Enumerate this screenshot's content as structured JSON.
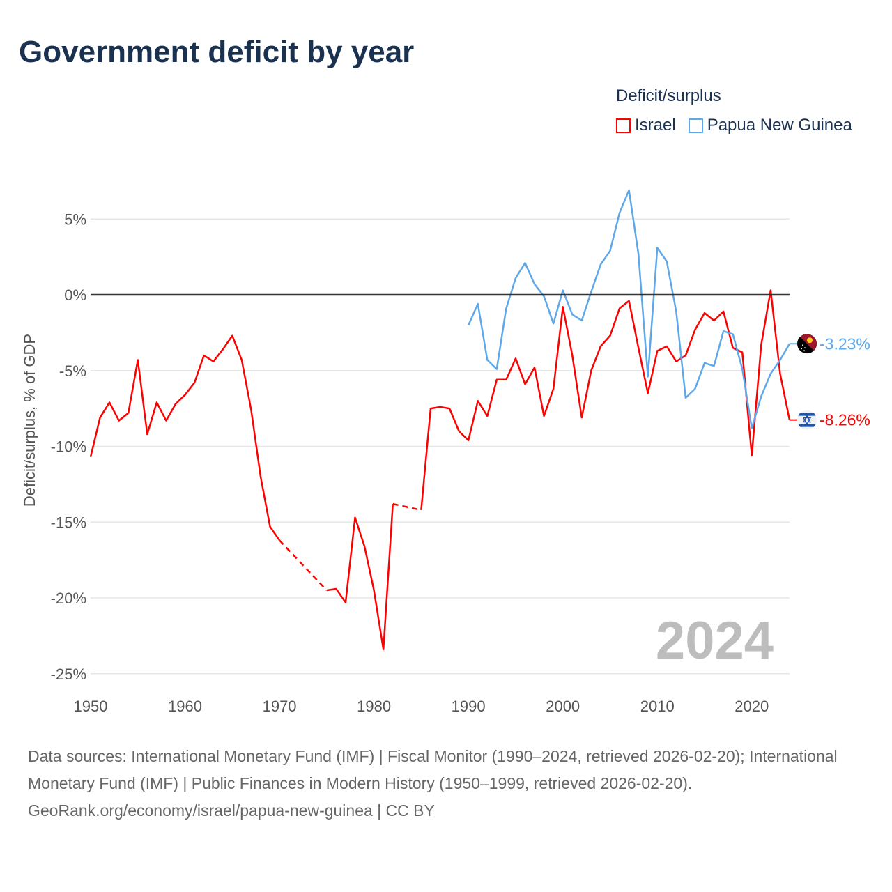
{
  "title": "Government deficit by year",
  "legend": {
    "title": "Deficit/surplus",
    "items": [
      {
        "name": "Israel",
        "color": "#ff0000"
      },
      {
        "name": "Papua New Guinea",
        "color": "#5ea8ea"
      }
    ]
  },
  "watermark_year": "2024",
  "footer": {
    "sources": "Data sources: International Monetary Fund (IMF) | Fiscal Monitor (1990–2024, retrieved 2026-02-20); International Monetary Fund (IMF) | Public Finances in Modern History (1950–1999, retrieved 2026-02-20).",
    "link": "GeoRank.org/economy/israel/papua-new-guinea | CC BY"
  },
  "chart_data": {
    "type": "line",
    "title": "Government deficit by year",
    "xlabel": "",
    "ylabel": "Deficit/surplus, % of GDP",
    "xlim": [
      1950,
      2024
    ],
    "ylim": [
      -25,
      5
    ],
    "xticks": [
      1950,
      1960,
      1970,
      1980,
      1990,
      2000,
      2010,
      2020
    ],
    "xtick_labels": [
      "1950",
      "1960",
      "1970",
      "1980",
      "1990",
      "2000",
      "2010",
      "2020"
    ],
    "yticks": [
      5,
      0,
      -5,
      -10,
      -15,
      -20,
      -25
    ],
    "ytick_labels": [
      "5%",
      "0%",
      "-5%",
      "-10%",
      "-15%",
      "-20%",
      "-25%"
    ],
    "grid": true,
    "legend_position": "top-right",
    "series": [
      {
        "name": "Israel",
        "color": "#ff0000",
        "start_year": 1950,
        "end_label": "-8.26%",
        "flag": "israel-flag",
        "values": [
          -10.7,
          -8.1,
          -7.1,
          -8.3,
          -7.8,
          -4.3,
          -9.2,
          -7.1,
          -8.3,
          -7.2,
          -6.6,
          -5.8,
          -4.0,
          -4.4,
          -3.6,
          -2.7,
          -4.3,
          -7.6,
          -12.0,
          -15.3,
          -16.2,
          null,
          null,
          null,
          null,
          -19.5,
          -19.4,
          -20.3,
          -14.7,
          -16.6,
          -19.5,
          -23.4,
          -13.8,
          null,
          null,
          -14.2,
          -7.5,
          -7.4,
          -7.5,
          -9.0,
          -9.6,
          -7.0,
          -8.0,
          -5.6,
          -5.6,
          -4.2,
          -5.9,
          -4.8,
          -8.0,
          -6.2,
          -0.8,
          -4.0,
          -8.1,
          -5.0,
          -3.4,
          -2.7,
          -0.9,
          -0.4,
          -3.5,
          -6.5,
          -3.7,
          -3.4,
          -4.4,
          -4.0,
          -2.3,
          -1.2,
          -1.7,
          -1.1,
          -3.5,
          -3.8,
          -10.6,
          -3.3,
          0.3,
          -5.2,
          -8.26
        ]
      },
      {
        "name": "Papua New Guinea",
        "color": "#5ea8ea",
        "start_year": 1990,
        "end_label": "-3.23%",
        "flag": "papua-new-guinea-flag",
        "values": [
          -2.0,
          -0.6,
          -4.3,
          -4.9,
          -0.9,
          1.1,
          2.1,
          0.7,
          -0.1,
          -1.9,
          0.3,
          -1.3,
          -1.7,
          0.2,
          2.0,
          2.9,
          5.4,
          6.9,
          2.7,
          -5.4,
          3.1,
          2.2,
          -1.1,
          -6.8,
          -6.2,
          -4.5,
          -4.7,
          -2.4,
          -2.6,
          -4.9,
          -8.8,
          -6.7,
          -5.2,
          -4.3,
          -3.23
        ]
      }
    ]
  }
}
